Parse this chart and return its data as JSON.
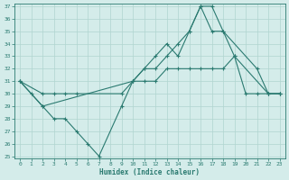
{
  "line1_x": [
    0,
    1,
    2,
    10,
    11,
    12,
    13,
    14,
    15,
    16,
    17,
    18,
    21,
    22,
    23
  ],
  "line1_y": [
    31,
    30,
    29,
    31,
    32,
    33,
    34,
    33,
    35,
    37,
    37,
    35,
    32,
    30,
    30
  ],
  "line2_x": [
    0,
    2,
    3,
    4,
    5,
    9,
    10,
    11,
    12,
    13,
    14,
    15,
    16,
    17,
    18,
    19,
    22,
    23
  ],
  "line2_y": [
    31,
    30,
    30,
    30,
    30,
    30,
    31,
    31,
    31,
    32,
    32,
    32,
    32,
    32,
    32,
    33,
    30,
    30
  ],
  "line3_x": [
    0,
    2,
    3,
    4,
    5,
    6,
    7,
    9,
    10,
    11,
    12,
    13,
    14,
    15,
    16,
    17,
    18,
    19,
    20,
    21,
    22,
    23
  ],
  "line3_y": [
    31,
    29,
    28,
    28,
    27,
    26,
    25,
    29,
    31,
    32,
    32,
    33,
    34,
    35,
    37,
    35,
    35,
    33,
    30,
    30,
    30,
    30
  ],
  "color": "#2a7a70",
  "bg_color": "#d4ecea",
  "grid_color": "#b0d4cf",
  "xlabel": "Humidex (Indice chaleur)",
  "ylim": [
    25,
    37
  ],
  "xlim": [
    -0.5,
    23.5
  ],
  "yticks": [
    25,
    26,
    27,
    28,
    29,
    30,
    31,
    32,
    33,
    34,
    35,
    36,
    37
  ],
  "xticks": [
    0,
    1,
    2,
    3,
    4,
    5,
    6,
    7,
    8,
    9,
    10,
    11,
    12,
    13,
    14,
    15,
    16,
    17,
    18,
    19,
    20,
    21,
    22,
    23
  ]
}
